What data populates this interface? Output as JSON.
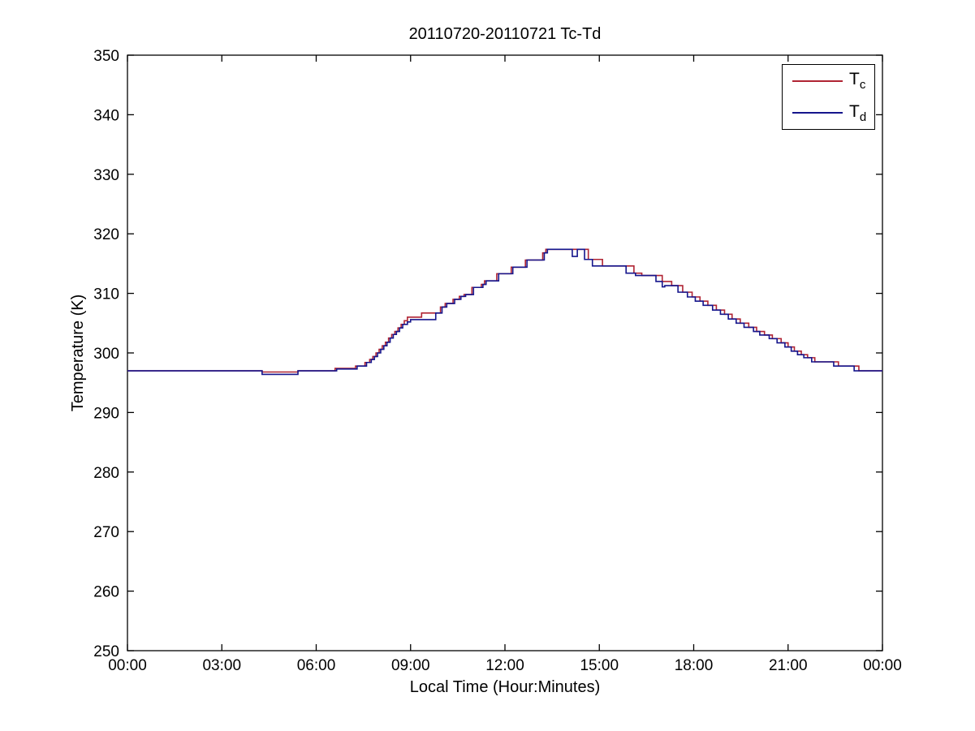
{
  "page": {
    "background": "#ffffff"
  },
  "chart_data": {
    "type": "line",
    "line_style": "step-after",
    "title": "20110720-20110721 Tc-Td",
    "xlabel": "Local Time (Hour:Minutes)",
    "ylabel": "Temperature (K)",
    "xlim": [
      0,
      24
    ],
    "ylim": [
      250,
      350
    ],
    "grid": false,
    "legend_position": "top-right",
    "x_ticks": [
      0,
      3,
      6,
      9,
      12,
      15,
      18,
      21,
      24
    ],
    "x_tick_labels": [
      "00:00",
      "03:00",
      "06:00",
      "09:00",
      "12:00",
      "15:00",
      "18:00",
      "21:00",
      "00:00"
    ],
    "y_ticks": [
      250,
      260,
      270,
      280,
      290,
      300,
      310,
      320,
      330,
      340,
      350
    ],
    "y_tick_labels": [
      "250",
      "260",
      "270",
      "280",
      "290",
      "300",
      "310",
      "320",
      "330",
      "340",
      "350"
    ],
    "axes_color": "#000000",
    "series": [
      {
        "name": "Tc",
        "label_main": "T",
        "label_sub": "c",
        "color": "#b02433",
        "points": [
          [
            0,
            297.0
          ],
          [
            4.28,
            296.8
          ],
          [
            5.42,
            297.0
          ],
          [
            6.6,
            297.4
          ],
          [
            7.25,
            297.8
          ],
          [
            7.55,
            298.4
          ],
          [
            7.7,
            298.9
          ],
          [
            7.8,
            299.4
          ],
          [
            7.9,
            300.0
          ],
          [
            8.0,
            300.6
          ],
          [
            8.1,
            301.2
          ],
          [
            8.2,
            301.8
          ],
          [
            8.3,
            302.5
          ],
          [
            8.4,
            303.1
          ],
          [
            8.5,
            303.6
          ],
          [
            8.6,
            304.2
          ],
          [
            8.7,
            304.8
          ],
          [
            8.8,
            305.4
          ],
          [
            8.9,
            306.0
          ],
          [
            9.35,
            306.7
          ],
          [
            9.95,
            307.7
          ],
          [
            10.1,
            308.3
          ],
          [
            10.35,
            309.0
          ],
          [
            10.55,
            309.5
          ],
          [
            10.7,
            309.8
          ],
          [
            10.95,
            311.0
          ],
          [
            11.25,
            311.5
          ],
          [
            11.35,
            312.1
          ],
          [
            11.74,
            313.3
          ],
          [
            12.2,
            314.4
          ],
          [
            12.65,
            315.6
          ],
          [
            13.2,
            316.8
          ],
          [
            13.3,
            317.4
          ],
          [
            14.65,
            315.7
          ],
          [
            15.1,
            314.6
          ],
          [
            16.1,
            313.4
          ],
          [
            16.35,
            313.0
          ],
          [
            17.0,
            312.0
          ],
          [
            17.3,
            311.3
          ],
          [
            17.65,
            310.2
          ],
          [
            17.95,
            309.4
          ],
          [
            18.2,
            308.7
          ],
          [
            18.45,
            308.0
          ],
          [
            18.72,
            307.2
          ],
          [
            18.98,
            306.5
          ],
          [
            19.22,
            305.7
          ],
          [
            19.48,
            305.0
          ],
          [
            19.75,
            304.3
          ],
          [
            20.0,
            303.6
          ],
          [
            20.25,
            303.0
          ],
          [
            20.5,
            302.4
          ],
          [
            20.78,
            301.7
          ],
          [
            21.0,
            301.0
          ],
          [
            21.2,
            300.3
          ],
          [
            21.42,
            299.7
          ],
          [
            21.62,
            299.2
          ],
          [
            21.85,
            298.5
          ],
          [
            22.6,
            297.8
          ],
          [
            23.25,
            297.0
          ],
          [
            24,
            297.0
          ]
        ]
      },
      {
        "name": "Td",
        "label_main": "T",
        "label_sub": "d",
        "color": "#15158c",
        "points": [
          [
            0,
            297.0
          ],
          [
            4.28,
            296.4
          ],
          [
            5.42,
            297.0
          ],
          [
            6.65,
            297.3
          ],
          [
            7.3,
            297.8
          ],
          [
            7.6,
            298.4
          ],
          [
            7.75,
            298.9
          ],
          [
            7.85,
            299.4
          ],
          [
            7.95,
            300.0
          ],
          [
            8.05,
            300.6
          ],
          [
            8.15,
            301.2
          ],
          [
            8.25,
            301.8
          ],
          [
            8.35,
            302.5
          ],
          [
            8.45,
            303.1
          ],
          [
            8.55,
            303.6
          ],
          [
            8.65,
            304.2
          ],
          [
            8.75,
            304.8
          ],
          [
            8.9,
            305.2
          ],
          [
            9.0,
            305.6
          ],
          [
            9.8,
            306.7
          ],
          [
            10.0,
            307.7
          ],
          [
            10.15,
            308.3
          ],
          [
            10.4,
            309.0
          ],
          [
            10.6,
            309.5
          ],
          [
            10.75,
            309.8
          ],
          [
            11.0,
            311.0
          ],
          [
            11.3,
            311.5
          ],
          [
            11.4,
            312.1
          ],
          [
            11.8,
            313.3
          ],
          [
            12.25,
            314.4
          ],
          [
            12.7,
            315.6
          ],
          [
            13.25,
            316.8
          ],
          [
            13.35,
            317.4
          ],
          [
            14.14,
            316.2
          ],
          [
            14.3,
            317.4
          ],
          [
            14.53,
            315.7
          ],
          [
            14.78,
            314.6
          ],
          [
            15.85,
            313.4
          ],
          [
            16.15,
            313.0
          ],
          [
            16.8,
            312.0
          ],
          [
            17.0,
            311.1
          ],
          [
            17.08,
            311.3
          ],
          [
            17.5,
            310.2
          ],
          [
            17.8,
            309.4
          ],
          [
            18.05,
            308.7
          ],
          [
            18.3,
            308.0
          ],
          [
            18.6,
            307.2
          ],
          [
            18.85,
            306.5
          ],
          [
            19.1,
            305.7
          ],
          [
            19.35,
            305.0
          ],
          [
            19.6,
            304.3
          ],
          [
            19.9,
            303.6
          ],
          [
            20.1,
            303.0
          ],
          [
            20.4,
            302.4
          ],
          [
            20.65,
            301.7
          ],
          [
            20.9,
            301.0
          ],
          [
            21.1,
            300.3
          ],
          [
            21.3,
            299.7
          ],
          [
            21.5,
            299.2
          ],
          [
            21.75,
            298.5
          ],
          [
            22.45,
            297.8
          ],
          [
            23.1,
            297.0
          ],
          [
            24,
            297.0
          ]
        ]
      }
    ]
  }
}
